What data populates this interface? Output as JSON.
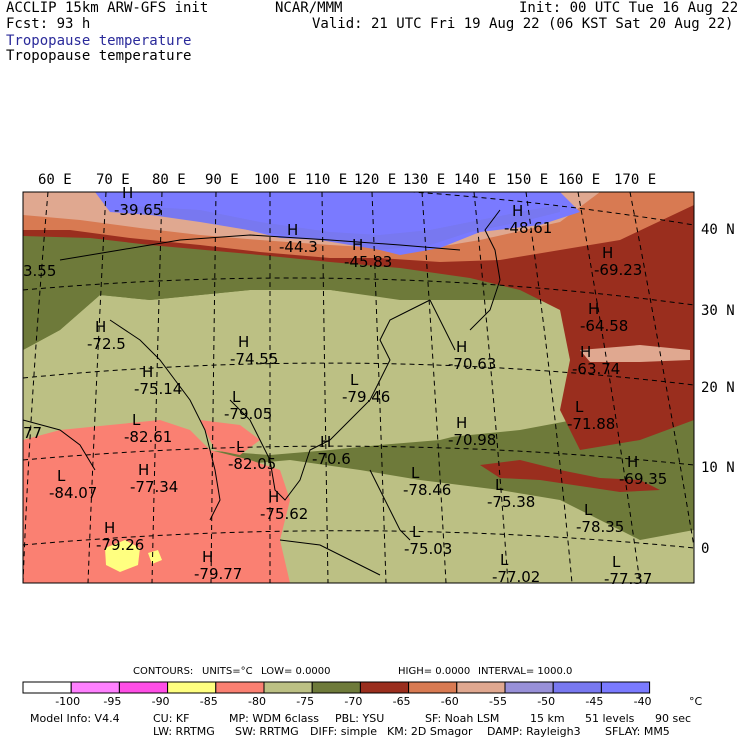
{
  "header": {
    "model": "ACCLIP 15km ARW-GFS init",
    "forecast": "Fcst:   93 h",
    "org": "NCAR/MMM",
    "init": "Init: 00 UTC Tue 16 Aug 22",
    "valid": "Valid: 21 UTC Fri 19 Aug 22 (06 KST Sat 20 Aug 22)",
    "field_title_1": "Tropopause temperature",
    "field_title_2": "Tropopause temperature"
  },
  "map": {
    "longitude_labels": [
      "60 E",
      "70 E",
      "80 E",
      "90 E",
      "100 E",
      "110 E",
      "120 E",
      "130 E",
      "140 E",
      "150 E",
      "160 E",
      "170 E"
    ],
    "latitude_labels": [
      "40 N",
      "30 N",
      "20 N",
      "10 N",
      "0"
    ],
    "colors": {
      "c_lt_neg100": "#ffffff",
      "c_neg100_neg95": "#ff80ff",
      "c_neg95_neg90": "#ff4ee6",
      "c_neg90_neg85": "#ffff80",
      "c_neg85_neg80": "#fa8072",
      "c_neg80_neg75": "#bcc084",
      "c_neg75_neg70": "#6e7a3a",
      "c_neg70_neg65": "#9a2e1e",
      "c_neg65_neg60": "#d87a52",
      "c_neg60_neg55": "#e0a890",
      "c_neg55_neg50": "#9890d8",
      "c_neg50_neg45": "#7878f0",
      "c_gt_neg45": "#7a7aff"
    },
    "extrema": [
      {
        "type": "H",
        "value": "-39.65"
      },
      {
        "type": "H",
        "value": "-44.3"
      },
      {
        "type": "H",
        "value": "-45.83"
      },
      {
        "type": "H",
        "value": "-48.61"
      },
      {
        "type": "H",
        "value": "-69.23"
      },
      {
        "type": "H",
        "value": "-64.58"
      },
      {
        "type": "H",
        "value": "-63.74"
      },
      {
        "type": "L",
        "value": "-71.88"
      },
      {
        "type": "H",
        "value": "-69.35"
      },
      {
        "type": "H",
        "value": "-72.5"
      },
      {
        "type": "H",
        "value": "-74.55"
      },
      {
        "type": "L",
        "value": "-79.46"
      },
      {
        "type": "H",
        "value": "-70.63"
      },
      {
        "type": "H",
        "value": "-75.14"
      },
      {
        "type": "L",
        "value": "-79.05"
      },
      {
        "type": "L",
        "value": "-82.61"
      },
      {
        "type": "H",
        "value": "-70.98"
      },
      {
        "type": "H",
        "value": "-70.6"
      },
      {
        "type": "L",
        "value": "-82.05"
      },
      {
        "type": "H",
        "value": "-77.34"
      },
      {
        "type": "L",
        "value": "-84.07"
      },
      {
        "type": "L",
        "value": "-78.46"
      },
      {
        "type": "L",
        "value": "-75.38"
      },
      {
        "type": "H",
        "value": "-75.62"
      },
      {
        "type": "L",
        "value": "-78.35"
      },
      {
        "type": "H",
        "value": "-79.26"
      },
      {
        "type": "L",
        "value": "-75.03"
      },
      {
        "type": "L",
        "value": "-77.02"
      },
      {
        "type": "L",
        "value": "-77.37"
      },
      {
        "type": "H",
        "value": "-79.77"
      }
    ],
    "edge_values": [
      "3.55",
      "77"
    ],
    "legend_box_markers": [
      "H",
      "L"
    ]
  },
  "contours_line": {
    "contours": "CONTOURS:",
    "units": "UNITS=°C",
    "low": "LOW=   0.0000",
    "high": "HIGH=   0.0000",
    "interval": "INTERVAL=    1000.0"
  },
  "colorbar": {
    "labels": [
      "-100",
      "-95",
      "-90",
      "-85",
      "-80",
      "-75",
      "-70",
      "-65",
      "-60",
      "-55",
      "-50",
      "-45",
      "-40"
    ],
    "unit": "°C"
  },
  "model_info": {
    "line1": {
      "model": "Model Info: V4.4",
      "cu": "CU: KF",
      "mp": "MP: WDM 6class",
      "pbl": "PBL: YSU",
      "sf": "SF: Noah LSM",
      "res": "15 km",
      "levels": "51 levels",
      "dt": "90 sec"
    },
    "line2": {
      "lw": "LW: RRTMG",
      "sw": "SW: RRTMG",
      "diff": "DIFF: simple",
      "km": "KM: 2D Smagor",
      "damp": "DAMP: Rayleigh3",
      "sflay": "SFLAY: MM5"
    }
  }
}
